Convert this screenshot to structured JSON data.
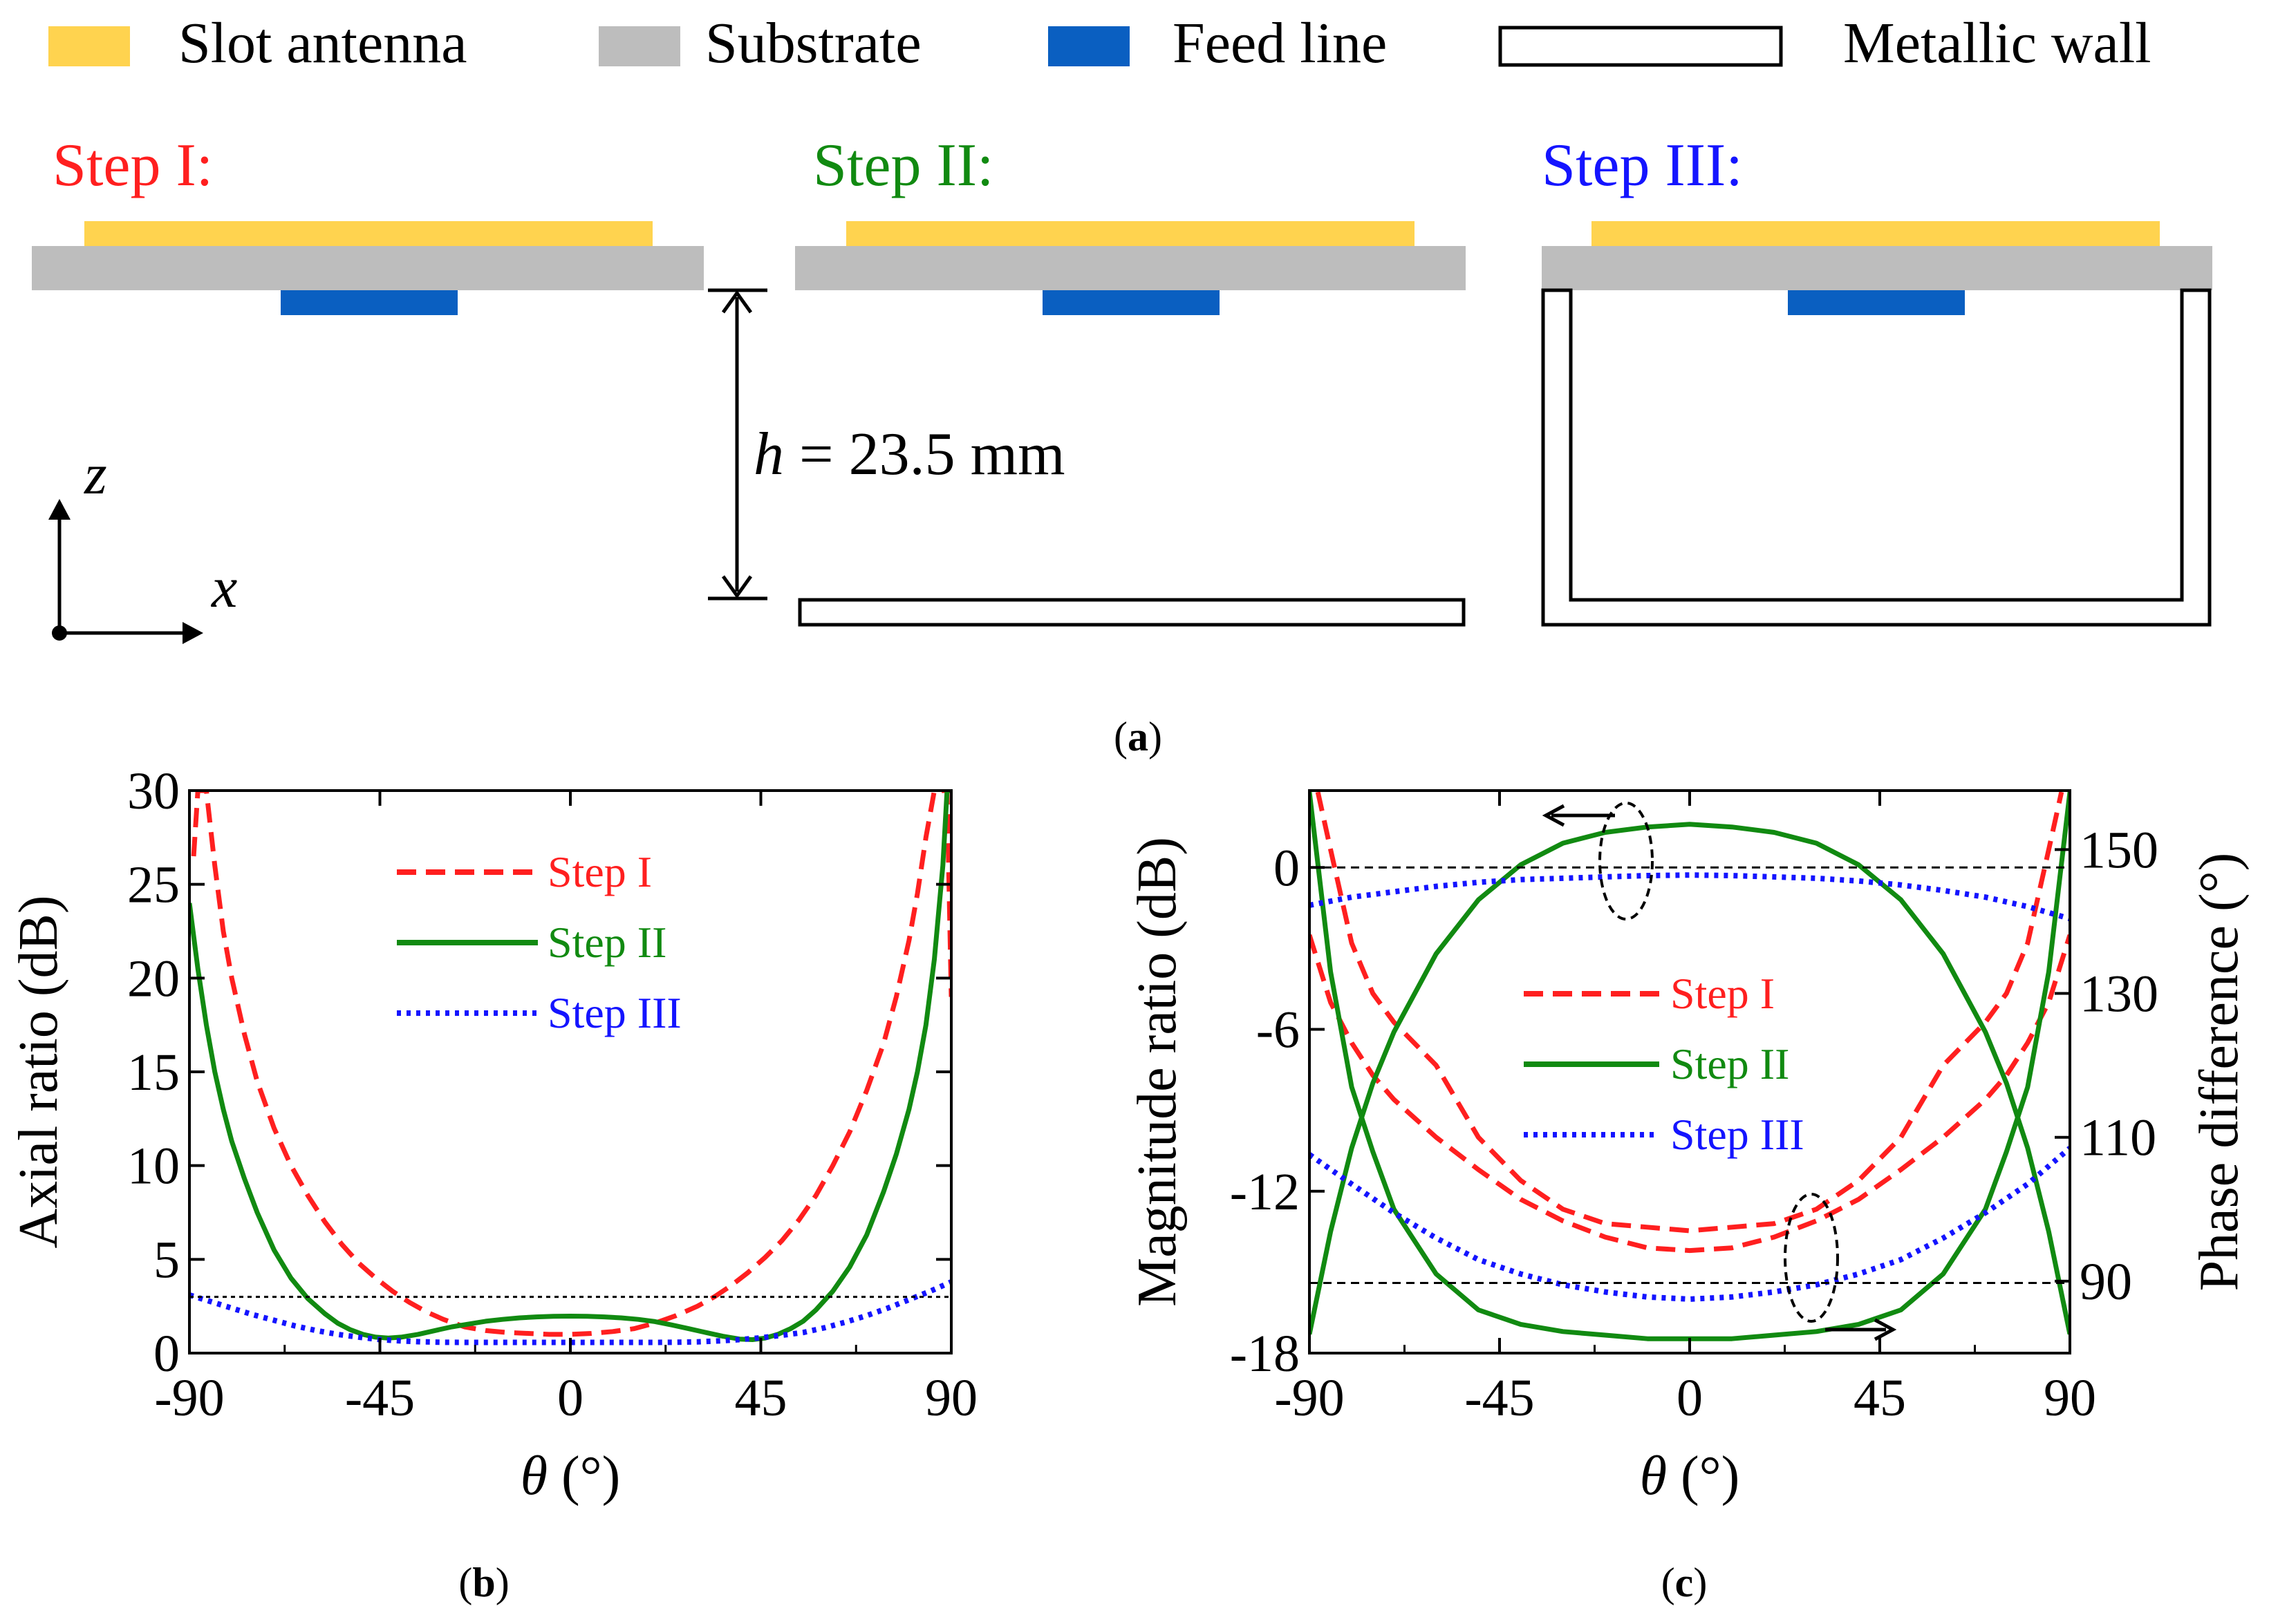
{
  "legend_top": {
    "slot": "Slot antenna",
    "substrate": "Substrate",
    "feed": "Feed line",
    "wall": "Metallic wall"
  },
  "steps": {
    "s1": "Step I:",
    "s2": "Step II:",
    "s3": "Step III:"
  },
  "height_label": {
    "var": "h",
    "rest": " = 23.5 mm"
  },
  "axes_labels": {
    "z": "z",
    "x": "x"
  },
  "captions": {
    "a": "a",
    "b": "b",
    "c": "c"
  },
  "colors": {
    "slot": "#FFD34F",
    "substrate": "#BDBDBD",
    "feed": "#0A5FC1",
    "step1": "#FF1F1F",
    "step2": "#118A11",
    "step3": "#1414FF"
  },
  "chart_data": [
    {
      "type": "line",
      "panel": "b",
      "xlabel_sym": "θ",
      "xlabel_unit": " (°)",
      "ylabel": "Axial ratio (dB)",
      "xlim": [
        -90,
        90
      ],
      "ylim": [
        0,
        30
      ],
      "xticks": [
        "-90",
        "-45",
        "0",
        "45",
        "90"
      ],
      "yticks": [
        "0",
        "5",
        "10",
        "15",
        "20",
        "25",
        "30"
      ],
      "reference_line": 3,
      "legend": [
        "Step I",
        "Step II",
        "Step III"
      ],
      "series": [
        {
          "name": "Step I",
          "x": [
            -89,
            -88,
            -87,
            -86,
            -84,
            -82,
            -80,
            -77,
            -74,
            -70,
            -66,
            -62,
            -58,
            -54,
            -50,
            -46,
            -42,
            -38,
            -34,
            -30,
            -25,
            -20,
            -15,
            -10,
            -5,
            0,
            5,
            10,
            15,
            20,
            25,
            30,
            34,
            38,
            42,
            46,
            50,
            54,
            58,
            62,
            66,
            70,
            74,
            77,
            80,
            82,
            84,
            86,
            87,
            88,
            89,
            90
          ],
          "y": [
            26.5,
            30,
            30,
            30,
            26,
            22.5,
            20,
            17,
            14.5,
            12,
            10,
            8.4,
            7,
            5.8,
            4.8,
            4,
            3.3,
            2.7,
            2.2,
            1.8,
            1.4,
            1.2,
            1.1,
            1.05,
            1.0,
            1.0,
            1.05,
            1.15,
            1.3,
            1.6,
            2.0,
            2.5,
            3.0,
            3.6,
            4.3,
            5.1,
            6.0,
            7.1,
            8.4,
            10,
            11.8,
            14,
            16.5,
            19,
            22,
            24.5,
            27.5,
            30,
            30,
            30,
            30,
            19
          ]
        },
        {
          "name": "Step II",
          "x": [
            -90,
            -88,
            -86,
            -84,
            -82,
            -80,
            -77,
            -74,
            -70,
            -66,
            -62,
            -58,
            -55,
            -52,
            -49,
            -46,
            -43,
            -40,
            -36,
            -32,
            -28,
            -24,
            -20,
            -16,
            -12,
            -8,
            -4,
            0,
            4,
            8,
            12,
            16,
            20,
            24,
            28,
            32,
            36,
            40,
            43,
            46,
            49,
            52,
            55,
            58,
            62,
            66,
            70,
            74,
            77,
            80,
            82,
            84,
            86,
            88,
            89,
            90
          ],
          "y": [
            24,
            20.5,
            17.5,
            15,
            13,
            11.3,
            9.3,
            7.5,
            5.5,
            4,
            2.9,
            2.1,
            1.6,
            1.25,
            1.0,
            0.85,
            0.8,
            0.85,
            1.0,
            1.2,
            1.4,
            1.55,
            1.7,
            1.8,
            1.88,
            1.93,
            1.96,
            1.97,
            1.96,
            1.93,
            1.88,
            1.8,
            1.68,
            1.5,
            1.3,
            1.1,
            0.9,
            0.75,
            0.72,
            0.8,
            1.0,
            1.3,
            1.7,
            2.3,
            3.3,
            4.6,
            6.3,
            8.6,
            10.6,
            13,
            15,
            17.5,
            21,
            26,
            30,
            30
          ]
        },
        {
          "name": "Step III",
          "x": [
            -90,
            -85,
            -80,
            -75,
            -70,
            -65,
            -60,
            -55,
            -50,
            -45,
            -40,
            -35,
            -30,
            -25,
            -20,
            -15,
            -10,
            -5,
            0,
            5,
            10,
            15,
            20,
            25,
            30,
            35,
            40,
            45,
            50,
            55,
            60,
            65,
            70,
            75,
            80,
            85,
            90
          ],
          "y": [
            3.1,
            2.75,
            2.4,
            2.05,
            1.75,
            1.45,
            1.2,
            1.0,
            0.85,
            0.72,
            0.65,
            0.6,
            0.58,
            0.57,
            0.57,
            0.57,
            0.57,
            0.57,
            0.57,
            0.57,
            0.57,
            0.57,
            0.57,
            0.58,
            0.6,
            0.65,
            0.72,
            0.82,
            0.95,
            1.1,
            1.35,
            1.65,
            2.0,
            2.4,
            2.85,
            3.3,
            3.8
          ]
        }
      ]
    },
    {
      "type": "line",
      "panel": "c",
      "xlabel_sym": "θ",
      "xlabel_unit": " (°)",
      "ylabel": "Magnitude ratio (dB)",
      "ylabel_right": "Phase difference (°)",
      "xlim": [
        -90,
        90
      ],
      "ylim": [
        -18,
        2.85
      ],
      "ylim_right": [
        80,
        158.2
      ],
      "xticks": [
        "-90",
        "-45",
        "0",
        "45",
        "90"
      ],
      "yticks": [
        "-18",
        "-12",
        "-6",
        "0"
      ],
      "yticks_right": [
        "90",
        "110",
        "130",
        "150"
      ],
      "reference_lines": [
        0,
        -15.4
      ],
      "legend": [
        "Step I",
        "Step II",
        "Step III"
      ],
      "series": [
        {
          "name": "Step I",
          "axis": "left",
          "x": [
            -90,
            -85,
            -80,
            -75,
            -70,
            -60,
            -50,
            -40,
            -30,
            -20,
            -10,
            0,
            10,
            20,
            30,
            40,
            50,
            60,
            70,
            75,
            80,
            85,
            90
          ],
          "y": [
            -2.5,
            -5,
            -6.5,
            -7.7,
            -8.6,
            -10,
            -11.2,
            -12.3,
            -13.1,
            -13.7,
            -14.1,
            -14.2,
            -14.1,
            -13.7,
            -13.1,
            -12.3,
            -11.2,
            -10,
            -8.6,
            -7.7,
            -6.5,
            -5,
            -2.5
          ]
        },
        {
          "name": "Step I",
          "axis": "right",
          "x": [
            -88,
            -85,
            -80,
            -75,
            -70,
            -60,
            -50,
            -40,
            -30,
            -20,
            -10,
            0,
            10,
            20,
            30,
            40,
            50,
            60,
            70,
            75,
            80,
            85,
            88
          ],
          "y": [
            158,
            150,
            137,
            130,
            126,
            120,
            110,
            104,
            100,
            98,
            97.5,
            97,
            97.5,
            98,
            100,
            104,
            110,
            120,
            126,
            130,
            137,
            150,
            158
          ]
        },
        {
          "name": "Step II",
          "axis": "left",
          "x": [
            -90,
            -85,
            -80,
            -75,
            -70,
            -60,
            -50,
            -40,
            -30,
            -20,
            -10,
            0,
            10,
            20,
            30,
            40,
            50,
            60,
            70,
            75,
            80,
            85,
            90
          ],
          "y": [
            -17.3,
            -13.5,
            -10.4,
            -8,
            -6.1,
            -3.2,
            -1.2,
            0.1,
            0.9,
            1.3,
            1.5,
            1.6,
            1.5,
            1.3,
            0.9,
            0.1,
            -1.2,
            -3.2,
            -6.1,
            -8,
            -10.4,
            -13.5,
            -17.3
          ]
        },
        {
          "name": "Step II",
          "axis": "right",
          "x": [
            -90,
            -85,
            -80,
            -75,
            -70,
            -60,
            -50,
            -40,
            -30,
            -20,
            -10,
            0,
            10,
            20,
            30,
            40,
            50,
            60,
            70,
            75,
            80,
            85,
            90
          ],
          "y": [
            158,
            133,
            117,
            108,
            100,
            91,
            86,
            84,
            83,
            82.5,
            82,
            82,
            82,
            82.5,
            83,
            84,
            86,
            91,
            100,
            108,
            117,
            133,
            158
          ]
        },
        {
          "name": "Step III",
          "axis": "left",
          "x": [
            -90,
            -80,
            -70,
            -60,
            -50,
            -40,
            -30,
            -20,
            -10,
            0,
            10,
            20,
            30,
            40,
            50,
            60,
            70,
            80,
            90
          ],
          "y": [
            -1.4,
            -1.1,
            -0.9,
            -0.7,
            -0.55,
            -0.45,
            -0.4,
            -0.35,
            -0.3,
            -0.28,
            -0.3,
            -0.35,
            -0.4,
            -0.5,
            -0.65,
            -0.85,
            -1.1,
            -1.45,
            -1.9
          ]
        },
        {
          "name": "Step III",
          "axis": "right",
          "x": [
            -90,
            -80,
            -70,
            -60,
            -50,
            -40,
            -30,
            -20,
            -10,
            0,
            10,
            20,
            30,
            40,
            50,
            60,
            70,
            80,
            90
          ],
          "y": [
            107.6,
            103.5,
            99.5,
            96,
            93,
            91,
            89.5,
            88.5,
            87.8,
            87.5,
            87.8,
            88.5,
            89.5,
            91,
            93,
            96,
            99.5,
            103.5,
            108.5
          ]
        }
      ]
    }
  ]
}
